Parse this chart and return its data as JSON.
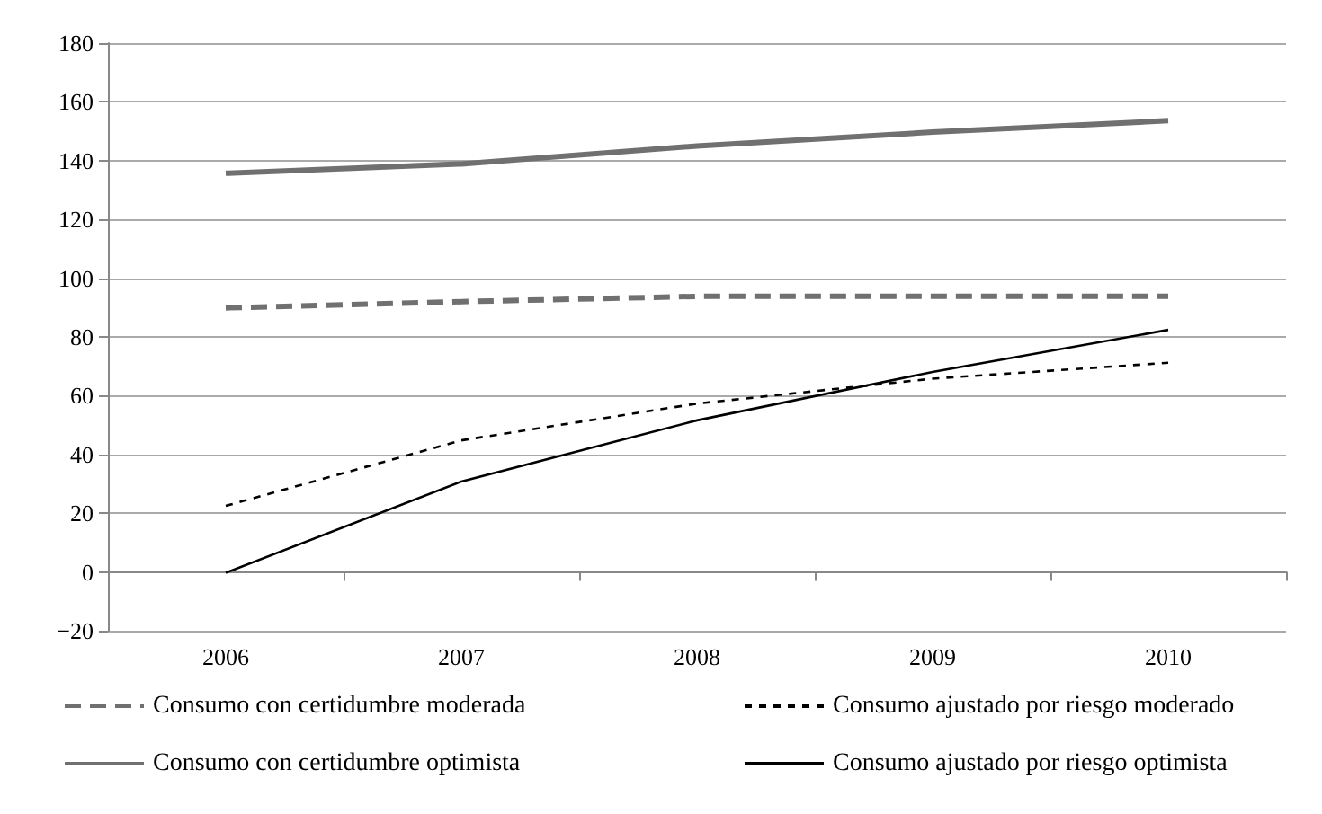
{
  "chart_data": {
    "type": "line",
    "categories": [
      "2006",
      "2007",
      "2008",
      "2009",
      "2010"
    ],
    "ylim": [
      -20,
      180
    ],
    "yticks": [
      -20,
      0,
      20,
      40,
      60,
      80,
      100,
      120,
      140,
      160,
      180
    ],
    "grid": "y",
    "legend": "bottom",
    "marker": "none",
    "series": [
      {
        "name": "Consumo con certidumbre moderada",
        "color": "#707070",
        "line_style": "dashed",
        "values": [
          89.9,
          92,
          93.8,
          93.8,
          93.8
        ]
      },
      {
        "name": "Consumo ajustado por riesgo moderado",
        "color": "#000000",
        "line_style": "dotted",
        "values": [
          22.5,
          44.8,
          57.3,
          65.8,
          71.2
        ]
      },
      {
        "name": "Consumo con certidumbre optimista",
        "color": "#707070",
        "line_style": "solid",
        "values": [
          135.7,
          138.9,
          145,
          149.7,
          153.6
        ]
      },
      {
        "name": "Consumo ajustado por riesgo optimista",
        "color": "#000000",
        "line_style": "solid",
        "values": [
          -0.3,
          30.8,
          51.6,
          68.1,
          82.4
        ]
      }
    ]
  }
}
